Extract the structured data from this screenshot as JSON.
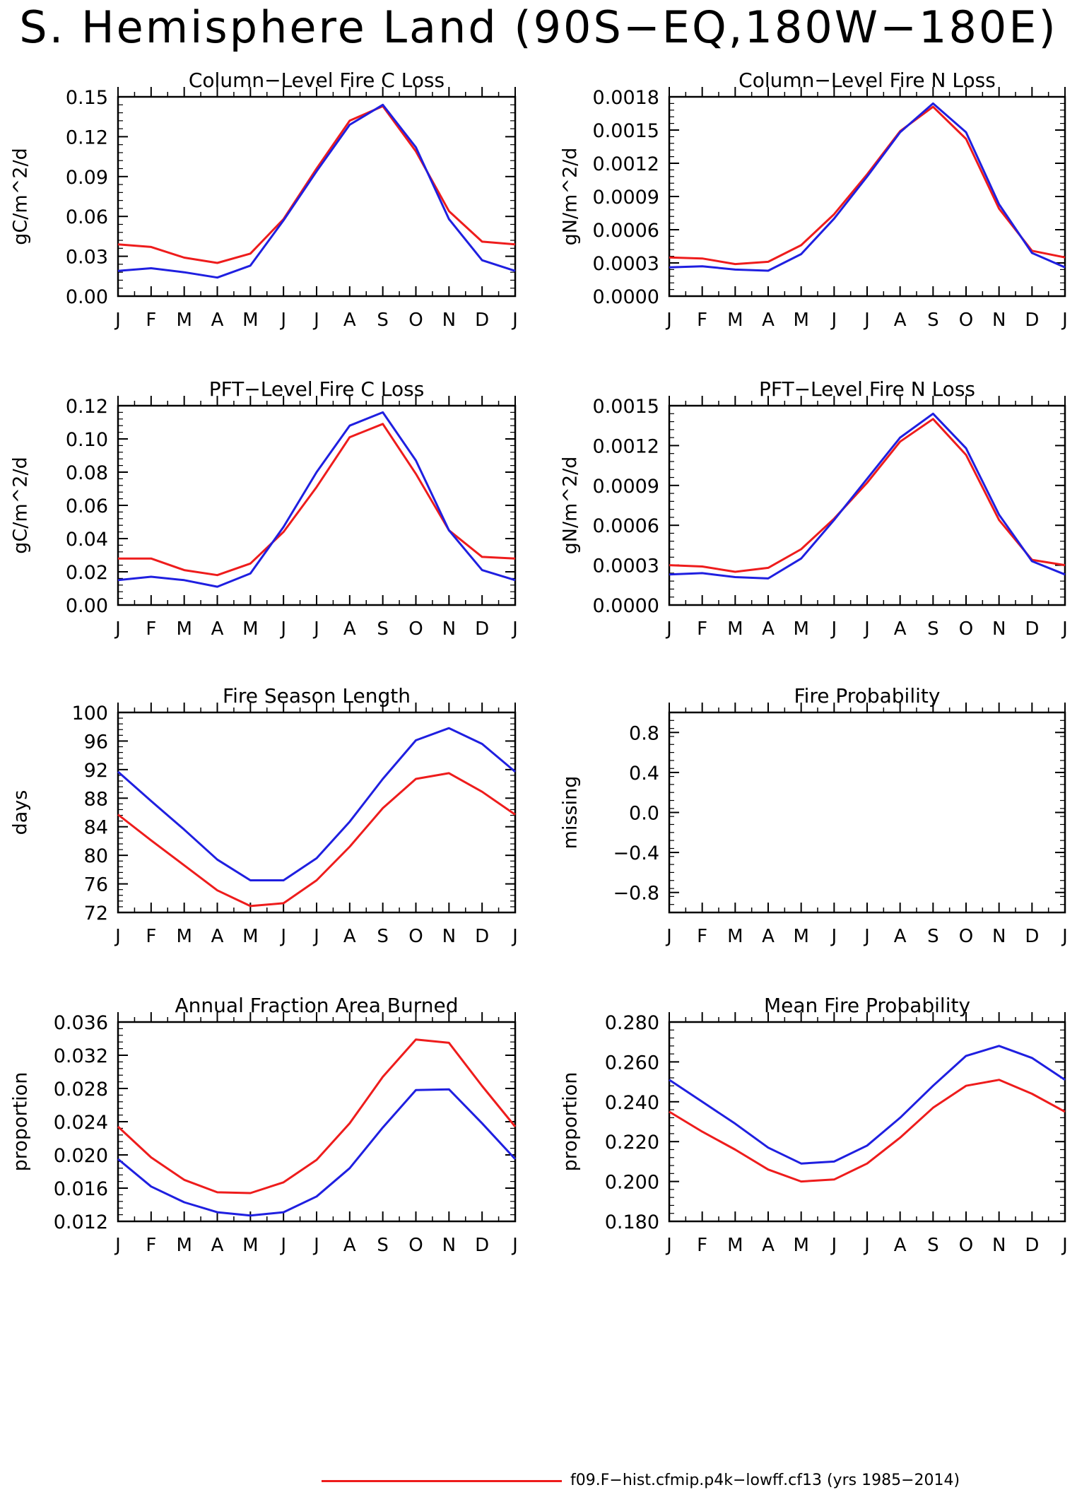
{
  "title": "S. Hemisphere Land (90S−EQ,180W−180E)",
  "months": [
    "J",
    "F",
    "M",
    "A",
    "M",
    "J",
    "J",
    "A",
    "S",
    "O",
    "N",
    "D",
    "J"
  ],
  "colors": {
    "red": "#ee1c1c",
    "blue": "#1f1fe0"
  },
  "legend": [
    {
      "label": "f09.F−hist.cfmip.p4k−lowff.cf13 (yrs 1985−2014)",
      "color": "#ee1c1c"
    }
  ],
  "chart_data": [
    {
      "type": "line",
      "title": "Column−Level Fire C Loss",
      "ylabel": "gC/m^2/d",
      "ylim": [
        0,
        0.15
      ],
      "yticks": [
        "0.00",
        "0.03",
        "0.06",
        "0.09",
        "0.12",
        "0.15"
      ],
      "series": [
        {
          "color": "#ee1c1c",
          "values": [
            0.039,
            0.037,
            0.029,
            0.025,
            0.032,
            0.058,
            0.096,
            0.132,
            0.143,
            0.109,
            0.064,
            0.041,
            0.039
          ]
        },
        {
          "color": "#1f1fe0",
          "values": [
            0.019,
            0.021,
            0.018,
            0.014,
            0.023,
            0.057,
            0.094,
            0.129,
            0.144,
            0.112,
            0.058,
            0.027,
            0.019
          ]
        }
      ]
    },
    {
      "type": "line",
      "title": "Column−Level Fire N Loss",
      "ylabel": "gN/m^2/d",
      "ylim": [
        0,
        0.0018
      ],
      "yticks": [
        "0.0000",
        "0.0003",
        "0.0006",
        "0.0009",
        "0.0012",
        "0.0015",
        "0.0018"
      ],
      "series": [
        {
          "color": "#ee1c1c",
          "values": [
            0.00035,
            0.00034,
            0.00029,
            0.00031,
            0.00046,
            0.00074,
            0.0011,
            0.00149,
            0.00171,
            0.00142,
            0.00079,
            0.00041,
            0.00035
          ]
        },
        {
          "color": "#1f1fe0",
          "values": [
            0.00026,
            0.00027,
            0.00024,
            0.00023,
            0.00038,
            0.0007,
            0.00108,
            0.00148,
            0.00174,
            0.00148,
            0.00083,
            0.00039,
            0.00026
          ]
        }
      ]
    },
    {
      "type": "line",
      "title": "PFT−Level Fire C Loss",
      "ylabel": "gC/m^2/d",
      "ylim": [
        0,
        0.12
      ],
      "yticks": [
        "0.00",
        "0.02",
        "0.04",
        "0.06",
        "0.08",
        "0.10",
        "0.12"
      ],
      "series": [
        {
          "color": "#ee1c1c",
          "values": [
            0.028,
            0.028,
            0.021,
            0.018,
            0.025,
            0.044,
            0.071,
            0.101,
            0.109,
            0.079,
            0.045,
            0.029,
            0.028
          ]
        },
        {
          "color": "#1f1fe0",
          "values": [
            0.015,
            0.017,
            0.015,
            0.011,
            0.019,
            0.047,
            0.08,
            0.108,
            0.116,
            0.087,
            0.045,
            0.021,
            0.015
          ]
        }
      ]
    },
    {
      "type": "line",
      "title": "PFT−Level Fire N Loss",
      "ylabel": "gN/m^2/d",
      "ylim": [
        0,
        0.0015
      ],
      "yticks": [
        "0.0000",
        "0.0003",
        "0.0006",
        "0.0009",
        "0.0012",
        "0.0015"
      ],
      "series": [
        {
          "color": "#ee1c1c",
          "values": [
            0.0003,
            0.00029,
            0.00025,
            0.00028,
            0.00042,
            0.00065,
            0.00092,
            0.00123,
            0.0014,
            0.00113,
            0.00064,
            0.00034,
            0.0003
          ]
        },
        {
          "color": "#1f1fe0",
          "values": [
            0.00023,
            0.00024,
            0.00021,
            0.0002,
            0.00035,
            0.00064,
            0.00095,
            0.00126,
            0.00144,
            0.00118,
            0.00068,
            0.00033,
            0.00023
          ]
        }
      ]
    },
    {
      "type": "line",
      "title": "Fire Season Length",
      "ylabel": "days",
      "ylim": [
        72,
        100
      ],
      "yticks": [
        "72",
        "76",
        "80",
        "84",
        "88",
        "92",
        "96",
        "100"
      ],
      "series": [
        {
          "color": "#ee1c1c",
          "values": [
            85.7,
            82.1,
            78.6,
            75.1,
            72.9,
            73.3,
            76.5,
            81.2,
            86.6,
            90.7,
            91.5,
            88.9,
            85.7
          ]
        },
        {
          "color": "#1f1fe0",
          "values": [
            91.7,
            87.6,
            83.6,
            79.4,
            76.5,
            76.5,
            79.6,
            84.7,
            90.7,
            96.1,
            97.8,
            95.6,
            91.7
          ]
        }
      ]
    },
    {
      "type": "line",
      "title": "Fire Probability",
      "ylabel": "missing",
      "ylim": [
        -1.0,
        1.0
      ],
      "yticks": [
        "−0.8",
        "−0.4",
        "0.0",
        "0.4",
        "0.8"
      ],
      "ytick_values": [
        -0.8,
        -0.4,
        0.0,
        0.4,
        0.8
      ],
      "series": []
    },
    {
      "type": "line",
      "title": "Annual Fraction Area Burned",
      "ylabel": "proportion",
      "ylim": [
        0.012,
        0.036
      ],
      "yticks": [
        "0.012",
        "0.016",
        "0.020",
        "0.024",
        "0.028",
        "0.032",
        "0.036"
      ],
      "series": [
        {
          "color": "#ee1c1c",
          "values": [
            0.0234,
            0.0197,
            0.017,
            0.0155,
            0.0154,
            0.0167,
            0.0194,
            0.0238,
            0.0294,
            0.0339,
            0.0335,
            0.0283,
            0.0234
          ]
        },
        {
          "color": "#1f1fe0",
          "values": [
            0.0195,
            0.0162,
            0.0143,
            0.0131,
            0.0127,
            0.0131,
            0.015,
            0.0184,
            0.0233,
            0.0278,
            0.0279,
            0.0238,
            0.0195
          ]
        }
      ]
    },
    {
      "type": "line",
      "title": "Mean Fire Probability",
      "ylabel": "proportion",
      "ylim": [
        0.18,
        0.28
      ],
      "yticks": [
        "0.180",
        "0.200",
        "0.220",
        "0.240",
        "0.260",
        "0.280"
      ],
      "series": [
        {
          "color": "#ee1c1c",
          "values": [
            0.235,
            0.225,
            0.216,
            0.206,
            0.2,
            0.201,
            0.209,
            0.222,
            0.237,
            0.248,
            0.251,
            0.244,
            0.235
          ]
        },
        {
          "color": "#1f1fe0",
          "values": [
            0.251,
            0.24,
            0.229,
            0.217,
            0.209,
            0.21,
            0.218,
            0.232,
            0.248,
            0.263,
            0.268,
            0.262,
            0.251
          ]
        }
      ]
    }
  ]
}
